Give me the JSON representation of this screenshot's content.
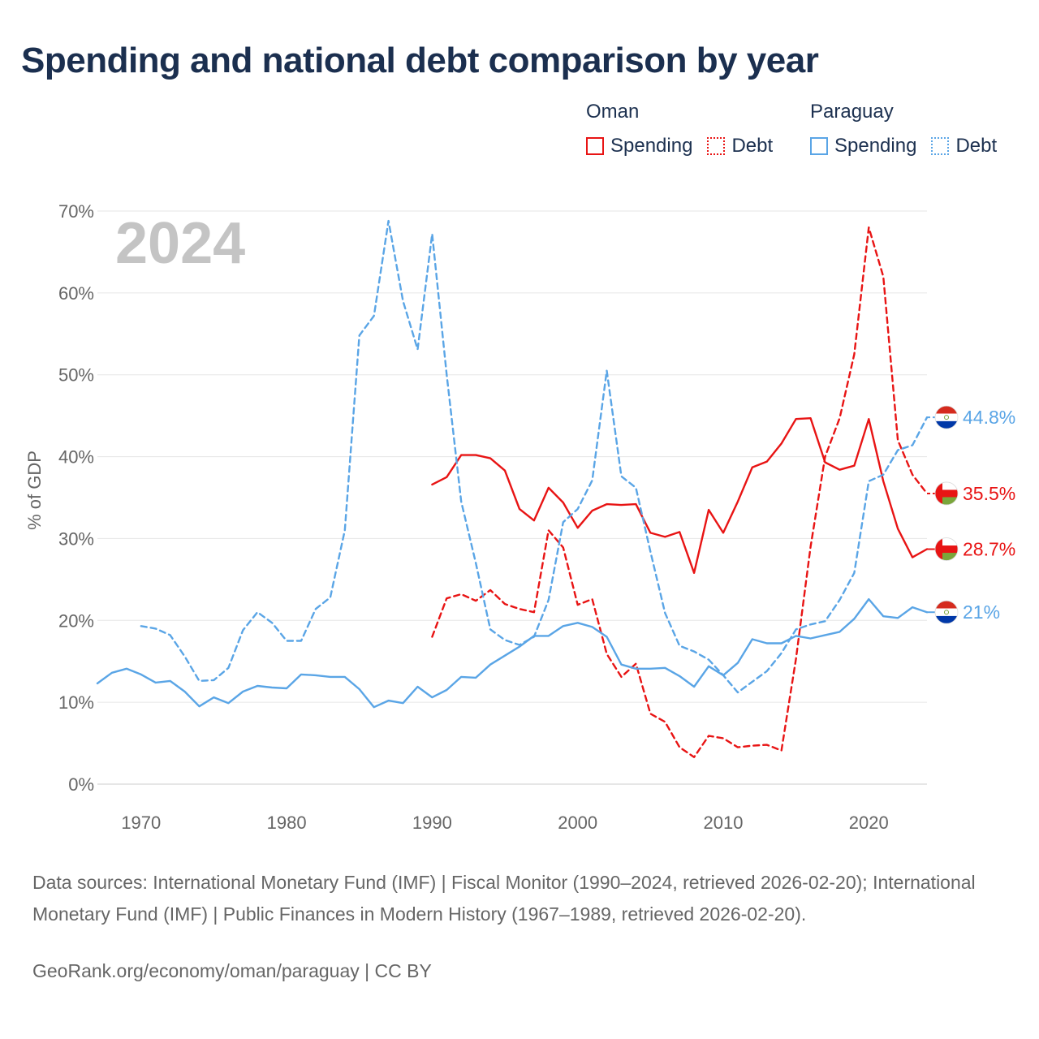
{
  "title": "Spending and national debt comparison by year",
  "legend": {
    "groups": [
      {
        "name": "Oman",
        "color": "#e81414",
        "items": [
          {
            "label": "Spending",
            "style": "solid"
          },
          {
            "label": "Debt",
            "style": "dotted"
          }
        ]
      },
      {
        "name": "Paraguay",
        "color": "#5aa5e6",
        "items": [
          {
            "label": "Spending",
            "style": "solid"
          },
          {
            "label": "Debt",
            "style": "dotted"
          }
        ]
      }
    ]
  },
  "year_label": "2024",
  "source_text": "Data sources: International Monetary Fund (IMF) | Fiscal Monitor (1990–2024, retrieved 2026-02-20); International Monetary Fund (IMF) | Public Finances in Modern History (1967–1989, retrieved 2026-02-20).",
  "credit": "GeoRank.org/economy/oman/paraguay | CC BY",
  "chart_data": {
    "type": "line",
    "title": "Spending and national debt comparison by year",
    "xlabel": "",
    "ylabel": "% of GDP",
    "xlim": [
      1967,
      2024
    ],
    "ylim": [
      0,
      70
    ],
    "x_ticks": [
      1970,
      1980,
      1990,
      2000,
      2010,
      2020
    ],
    "y_ticks": [
      0,
      10,
      20,
      30,
      40,
      50,
      60,
      70
    ],
    "y_tick_labels": [
      "0%",
      "10%",
      "20%",
      "30%",
      "40%",
      "50%",
      "60%",
      "70%"
    ],
    "grid": true,
    "series": [
      {
        "name": "Oman Spending",
        "country": "Oman",
        "metric": "Spending",
        "color": "#e81414",
        "dashed": false,
        "end_label": "28.7%",
        "x": [
          1990,
          1991,
          1992,
          1993,
          1994,
          1995,
          1996,
          1997,
          1998,
          1999,
          2000,
          2001,
          2002,
          2003,
          2004,
          2005,
          2006,
          2007,
          2008,
          2009,
          2010,
          2011,
          2012,
          2013,
          2014,
          2015,
          2016,
          2017,
          2018,
          2019,
          2020,
          2021,
          2022,
          2023,
          2024
        ],
        "values": [
          36.6,
          37.5,
          40.2,
          40.2,
          39.8,
          38.3,
          33.6,
          32.2,
          36.2,
          34.4,
          31.3,
          33.4,
          34.2,
          34.1,
          34.2,
          30.7,
          30.2,
          30.8,
          25.8,
          33.5,
          30.7,
          34.5,
          38.7,
          39.4,
          41.6,
          44.6,
          44.7,
          39.3,
          38.4,
          38.9,
          44.6,
          37.0,
          31.2,
          27.7,
          28.7
        ]
      },
      {
        "name": "Oman Debt",
        "country": "Oman",
        "metric": "Debt",
        "color": "#e81414",
        "dashed": true,
        "end_label": "35.5%",
        "x": [
          1990,
          1991,
          1992,
          1993,
          1994,
          1995,
          1996,
          1997,
          1998,
          1999,
          2000,
          2001,
          2002,
          2003,
          2004,
          2005,
          2006,
          2007,
          2008,
          2009,
          2010,
          2011,
          2012,
          2013,
          2014,
          2015,
          2016,
          2017,
          2018,
          2019,
          2020,
          2021,
          2022,
          2023,
          2024
        ],
        "values": [
          18.0,
          22.7,
          23.2,
          22.4,
          23.7,
          22.0,
          21.4,
          21.0,
          31.0,
          28.9,
          21.9,
          22.6,
          15.9,
          13.1,
          14.7,
          8.6,
          7.6,
          4.5,
          3.3,
          5.9,
          5.6,
          4.5,
          4.7,
          4.8,
          4.1,
          15.3,
          29.0,
          40.0,
          44.7,
          52.5,
          68.0,
          62.0,
          42.0,
          37.8,
          35.5
        ]
      },
      {
        "name": "Paraguay Spending",
        "country": "Paraguay",
        "metric": "Spending",
        "color": "#5aa5e6",
        "dashed": false,
        "end_label": "21%",
        "x": [
          1967,
          1968,
          1969,
          1970,
          1971,
          1972,
          1973,
          1974,
          1975,
          1976,
          1977,
          1978,
          1979,
          1980,
          1981,
          1982,
          1983,
          1984,
          1985,
          1986,
          1987,
          1988,
          1989,
          1990,
          1991,
          1992,
          1993,
          1994,
          1995,
          1996,
          1997,
          1998,
          1999,
          2000,
          2001,
          2002,
          2003,
          2004,
          2005,
          2006,
          2007,
          2008,
          2009,
          2010,
          2011,
          2012,
          2013,
          2014,
          2015,
          2016,
          2017,
          2018,
          2019,
          2020,
          2021,
          2022,
          2023,
          2024
        ],
        "values": [
          12.3,
          13.6,
          14.1,
          13.4,
          12.4,
          12.6,
          11.3,
          9.5,
          10.6,
          9.9,
          11.3,
          12.0,
          11.8,
          11.7,
          13.4,
          13.3,
          13.1,
          13.1,
          11.6,
          9.4,
          10.2,
          9.9,
          11.9,
          10.6,
          11.5,
          13.1,
          13.0,
          14.6,
          15.7,
          16.8,
          18.1,
          18.1,
          19.3,
          19.7,
          19.2,
          18.0,
          14.6,
          14.1,
          14.1,
          14.2,
          13.2,
          11.9,
          14.4,
          13.3,
          14.8,
          17.7,
          17.2,
          17.2,
          18.1,
          17.8,
          18.2,
          18.6,
          20.2,
          22.6,
          20.5,
          20.3,
          21.6,
          21.0
        ]
      },
      {
        "name": "Paraguay Debt",
        "country": "Paraguay",
        "metric": "Debt",
        "color": "#5aa5e6",
        "dashed": true,
        "end_label": "44.8%",
        "x": [
          1970,
          1971,
          1972,
          1973,
          1974,
          1975,
          1976,
          1977,
          1978,
          1979,
          1980,
          1981,
          1982,
          1983,
          1984,
          1985,
          1986,
          1987,
          1988,
          1989,
          1990,
          1991,
          1992,
          1993,
          1994,
          1995,
          1996,
          1997,
          1998,
          1999,
          2000,
          2001,
          2002,
          2003,
          2004,
          2005,
          2006,
          2007,
          2008,
          2009,
          2010,
          2011,
          2012,
          2013,
          2014,
          2015,
          2016,
          2017,
          2018,
          2019,
          2020,
          2021,
          2022,
          2023,
          2024
        ],
        "values": [
          19.3,
          19.0,
          18.2,
          15.6,
          12.6,
          12.7,
          14.2,
          18.8,
          21.0,
          19.7,
          17.5,
          17.5,
          21.4,
          22.8,
          31.0,
          54.8,
          57.2,
          68.8,
          59.0,
          53.1,
          67.2,
          50.0,
          34.5,
          27.0,
          18.9,
          17.6,
          17.0,
          18.0,
          22.5,
          32.0,
          33.6,
          37.1,
          50.5,
          37.6,
          36.2,
          28.4,
          20.9,
          16.9,
          16.2,
          15.2,
          13.3,
          11.2,
          12.5,
          13.8,
          16.0,
          18.9,
          19.5,
          19.9,
          22.5,
          25.8,
          37.0,
          37.8,
          40.8,
          41.4,
          44.8
        ]
      }
    ]
  }
}
